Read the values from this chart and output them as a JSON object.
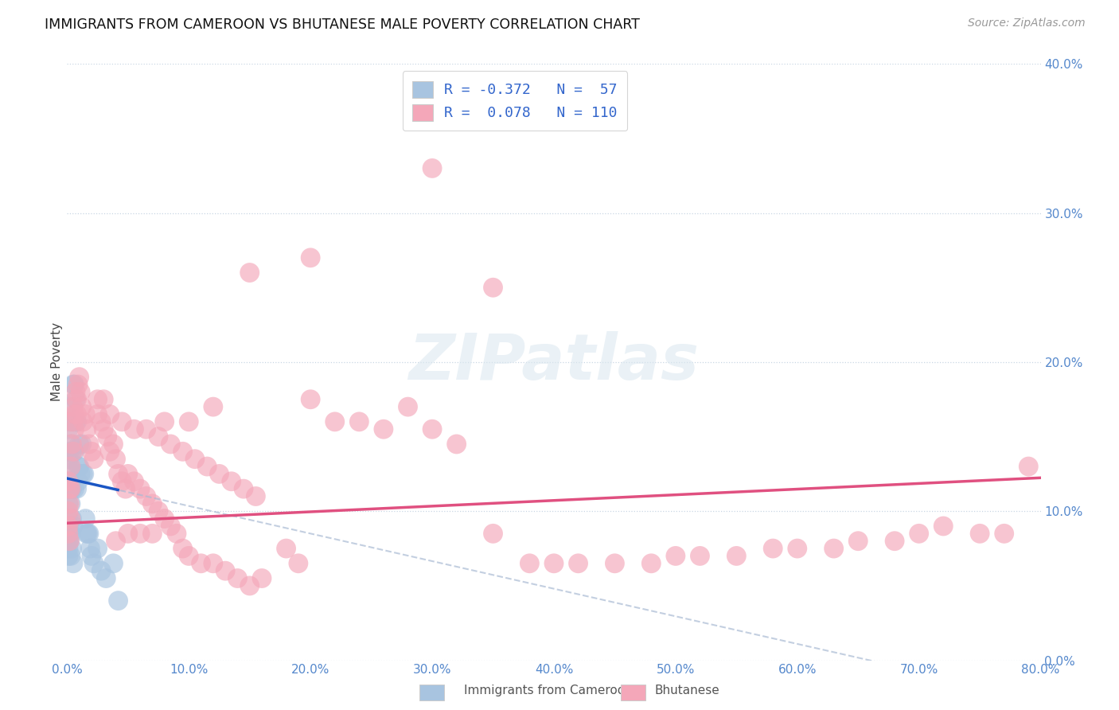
{
  "title": "IMMIGRANTS FROM CAMEROON VS BHUTANESE MALE POVERTY CORRELATION CHART",
  "source": "Source: ZipAtlas.com",
  "ylabel": "Male Poverty",
  "legend_label1": "Immigrants from Cameroon",
  "legend_label2": "Bhutanese",
  "R1": -0.372,
  "N1": 57,
  "R2": 0.078,
  "N2": 110,
  "xlim": [
    0.0,
    0.8
  ],
  "ylim": [
    0.0,
    0.4
  ],
  "color1": "#a8c4e0",
  "color2": "#f4a7b9",
  "trendline_color1": "#1a56c4",
  "trendline_color2": "#e05080",
  "dashed_color": "#aabbd4",
  "background_color": "#ffffff",
  "watermark": "ZIPatlas",
  "b_intercept": 0.122,
  "b_slope": -0.185,
  "p_intercept": 0.092,
  "p_slope": 0.038,
  "blue_points_x": [
    0.001,
    0.001,
    0.001,
    0.001,
    0.001,
    0.001,
    0.001,
    0.001,
    0.001,
    0.001,
    0.002,
    0.002,
    0.002,
    0.002,
    0.002,
    0.002,
    0.002,
    0.003,
    0.003,
    0.003,
    0.003,
    0.003,
    0.004,
    0.004,
    0.004,
    0.004,
    0.005,
    0.005,
    0.005,
    0.005,
    0.006,
    0.006,
    0.006,
    0.007,
    0.007,
    0.008,
    0.008,
    0.009,
    0.009,
    0.01,
    0.01,
    0.011,
    0.012,
    0.013,
    0.014,
    0.015,
    0.016,
    0.017,
    0.018,
    0.019,
    0.02,
    0.022,
    0.025,
    0.028,
    0.032,
    0.038,
    0.042
  ],
  "blue_points_y": [
    0.115,
    0.095,
    0.08,
    0.075,
    0.105,
    0.135,
    0.155,
    0.09,
    0.085,
    0.07,
    0.13,
    0.12,
    0.14,
    0.09,
    0.08,
    0.17,
    0.16,
    0.105,
    0.115,
    0.145,
    0.085,
    0.07,
    0.115,
    0.095,
    0.14,
    0.075,
    0.09,
    0.16,
    0.185,
    0.065,
    0.115,
    0.14,
    0.185,
    0.175,
    0.16,
    0.115,
    0.16,
    0.13,
    0.12,
    0.13,
    0.145,
    0.125,
    0.145,
    0.125,
    0.125,
    0.095,
    0.085,
    0.085,
    0.085,
    0.075,
    0.07,
    0.065,
    0.075,
    0.06,
    0.055,
    0.065,
    0.04
  ],
  "pink_points_x": [
    0.001,
    0.001,
    0.001,
    0.001,
    0.002,
    0.002,
    0.002,
    0.003,
    0.003,
    0.003,
    0.004,
    0.004,
    0.005,
    0.005,
    0.006,
    0.006,
    0.007,
    0.008,
    0.008,
    0.009,
    0.01,
    0.011,
    0.012,
    0.013,
    0.015,
    0.016,
    0.018,
    0.02,
    0.022,
    0.025,
    0.028,
    0.03,
    0.033,
    0.035,
    0.038,
    0.04,
    0.042,
    0.045,
    0.048,
    0.05,
    0.055,
    0.06,
    0.065,
    0.07,
    0.075,
    0.08,
    0.085,
    0.09,
    0.095,
    0.1,
    0.11,
    0.12,
    0.13,
    0.14,
    0.15,
    0.16,
    0.18,
    0.19,
    0.2,
    0.22,
    0.24,
    0.26,
    0.28,
    0.3,
    0.32,
    0.35,
    0.38,
    0.4,
    0.42,
    0.45,
    0.48,
    0.5,
    0.52,
    0.55,
    0.58,
    0.6,
    0.63,
    0.65,
    0.68,
    0.7,
    0.72,
    0.75,
    0.77,
    0.79,
    0.3,
    0.35,
    0.15,
    0.2,
    0.08,
    0.1,
    0.12,
    0.04,
    0.05,
    0.06,
    0.07,
    0.025,
    0.03,
    0.035,
    0.045,
    0.055,
    0.065,
    0.075,
    0.085,
    0.095,
    0.105,
    0.115,
    0.125,
    0.135,
    0.145,
    0.155
  ],
  "pink_points_y": [
    0.1,
    0.085,
    0.12,
    0.09,
    0.115,
    0.08,
    0.105,
    0.095,
    0.13,
    0.115,
    0.145,
    0.16,
    0.17,
    0.14,
    0.155,
    0.165,
    0.18,
    0.175,
    0.165,
    0.185,
    0.19,
    0.18,
    0.17,
    0.16,
    0.165,
    0.155,
    0.145,
    0.14,
    0.135,
    0.165,
    0.16,
    0.155,
    0.15,
    0.14,
    0.145,
    0.135,
    0.125,
    0.12,
    0.115,
    0.125,
    0.12,
    0.115,
    0.11,
    0.105,
    0.1,
    0.095,
    0.09,
    0.085,
    0.075,
    0.07,
    0.065,
    0.065,
    0.06,
    0.055,
    0.05,
    0.055,
    0.075,
    0.065,
    0.175,
    0.16,
    0.16,
    0.155,
    0.17,
    0.155,
    0.145,
    0.085,
    0.065,
    0.065,
    0.065,
    0.065,
    0.065,
    0.07,
    0.07,
    0.07,
    0.075,
    0.075,
    0.075,
    0.08,
    0.08,
    0.085,
    0.09,
    0.085,
    0.085,
    0.13,
    0.33,
    0.25,
    0.26,
    0.27,
    0.16,
    0.16,
    0.17,
    0.08,
    0.085,
    0.085,
    0.085,
    0.175,
    0.175,
    0.165,
    0.16,
    0.155,
    0.155,
    0.15,
    0.145,
    0.14,
    0.135,
    0.13,
    0.125,
    0.12,
    0.115,
    0.11
  ]
}
